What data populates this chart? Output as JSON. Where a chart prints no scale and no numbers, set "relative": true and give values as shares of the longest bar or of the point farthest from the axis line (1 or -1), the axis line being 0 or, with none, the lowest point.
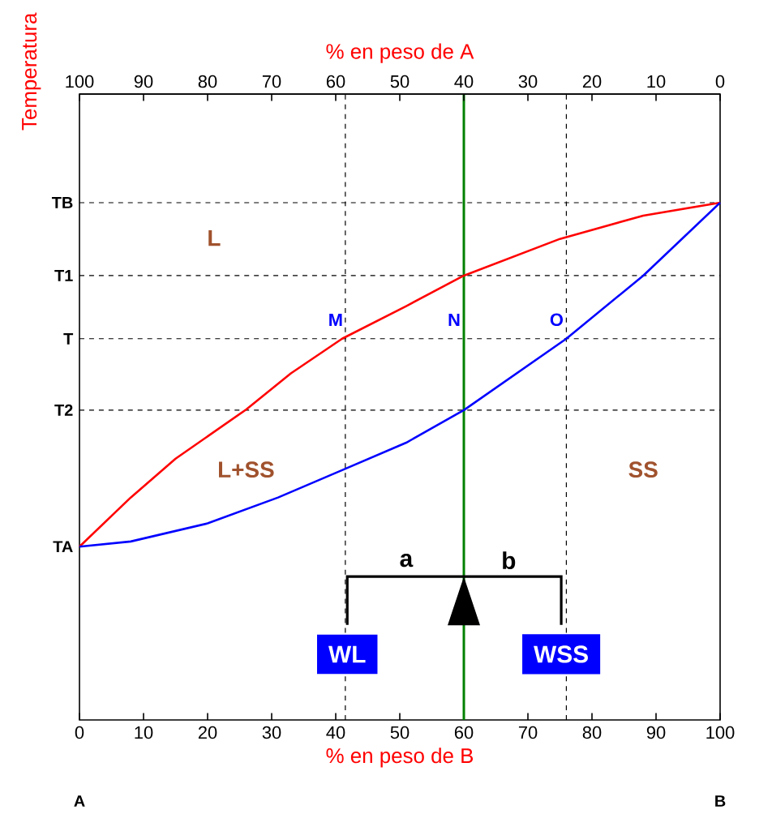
{
  "chart_data": {
    "type": "line",
    "relative": true,
    "ylabel": "Temperatura",
    "xlabel": "% en peso de B",
    "x2label": "% en peso de A",
    "xlim": [
      0,
      100
    ],
    "xticks": [
      0,
      10,
      20,
      30,
      40,
      50,
      60,
      70,
      80,
      90,
      100
    ],
    "x2lim": [
      100,
      0
    ],
    "x2ticks": [
      100,
      90,
      80,
      70,
      60,
      50,
      40,
      30,
      20,
      10,
      0
    ],
    "series": [
      {
        "color": "#ff0000",
        "x": [
          0,
          8,
          15,
          26,
          33,
          41,
          51,
          60,
          75,
          88,
          100
        ],
        "values": [
          0.335,
          0.43,
          0.505,
          0.6,
          0.67,
          0.737,
          0.8,
          0.859,
          0.93,
          0.975,
          1
        ]
      },
      {
        "color": "#0000ff",
        "x": [
          0,
          8,
          20,
          31,
          41,
          51,
          60,
          76,
          88,
          100
        ],
        "values": [
          0.335,
          0.345,
          0.38,
          0.43,
          0.483,
          0.536,
          0.599,
          0.737,
          0.859,
          1
        ]
      }
    ],
    "line_style": "solid",
    "ref_lines": [
      {
        "axis": "x",
        "value": 41.5,
        "color": "#000000",
        "line_style": "dashed"
      },
      {
        "axis": "x",
        "value": 60,
        "color": "#008000",
        "line_style": "solid"
      },
      {
        "axis": "x",
        "value": 76,
        "color": "#000000",
        "line_style": "dashed"
      },
      {
        "axis": "y",
        "value": 1,
        "label": "TB",
        "color": "#000000",
        "line_style": "dashed"
      },
      {
        "axis": "y",
        "value": 0.859,
        "label": "T1",
        "color": "#000000",
        "line_style": "dashed"
      },
      {
        "axis": "y",
        "value": 0.737,
        "label": "T",
        "color": "#000000",
        "line_style": "dashed"
      },
      {
        "axis": "y",
        "value": 0.599,
        "label": "T2",
        "color": "#000000",
        "line_style": "dashed"
      }
    ],
    "annotations": [
      "L",
      "L+SS",
      "SS",
      {
        "text": "M",
        "x": 41.5,
        "y": 0.737
      },
      {
        "text": "N",
        "x": 60,
        "y": 0.737
      },
      {
        "text": "O",
        "x": 76,
        "y": 0.737
      },
      "a",
      "b",
      "WL",
      "WSS",
      {
        "text": "TA",
        "x": 0,
        "y": 0.335
      },
      "A",
      "B"
    ]
  }
}
